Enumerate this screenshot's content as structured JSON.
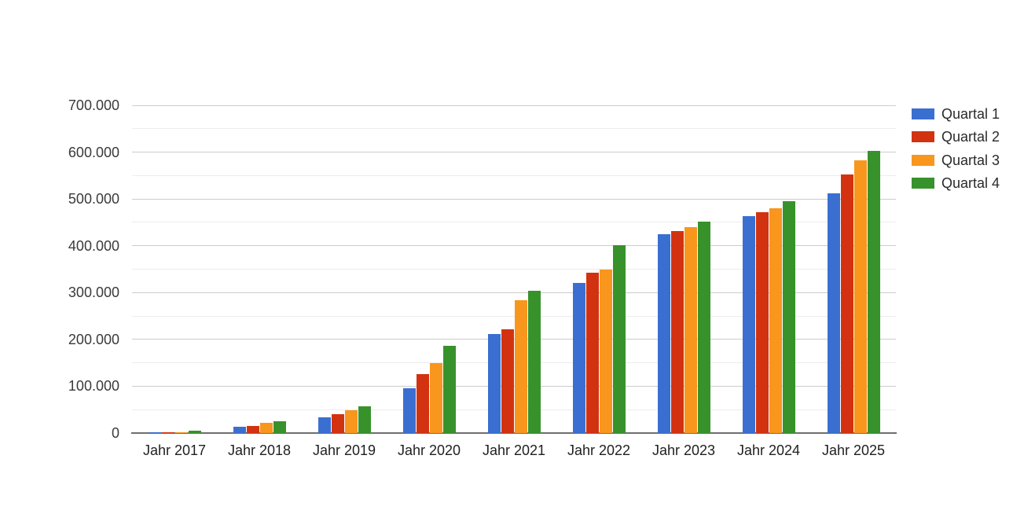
{
  "chart_data": {
    "type": "bar",
    "title": "",
    "xlabel": "",
    "ylabel": "",
    "categories": [
      "Jahr 2017",
      "Jahr 2018",
      "Jahr 2019",
      "Jahr 2020",
      "Jahr 2021",
      "Jahr 2022",
      "Jahr 2023",
      "Jahr 2024",
      "Jahr 2025"
    ],
    "series": [
      {
        "name": "Quartal 1",
        "color": "#3A6FD1",
        "values": [
          1300,
          13000,
          34000,
          96000,
          212000,
          320000,
          424000,
          463000,
          512000
        ]
      },
      {
        "name": "Quartal 2",
        "color": "#D33211",
        "values": [
          1800,
          16000,
          40000,
          126000,
          222000,
          342000,
          432000,
          471000,
          552000
        ]
      },
      {
        "name": "Quartal 3",
        "color": "#F8961D",
        "values": [
          2600,
          22000,
          49000,
          150000,
          283000,
          349000,
          440000,
          480000,
          583000
        ]
      },
      {
        "name": "Quartal 4",
        "color": "#38922B",
        "values": [
          4500,
          26000,
          57000,
          186000,
          304000,
          402000,
          451000,
          496000,
          602000
        ]
      }
    ],
    "y_axis": {
      "min": 0,
      "max": 700000,
      "major_step": 100000,
      "minor_step": 50000,
      "tick_labels": [
        "0",
        "100.000",
        "200.000",
        "300.000",
        "400.000",
        "500.000",
        "600.000",
        "700.000"
      ]
    },
    "legend": {
      "position": "right",
      "entries": [
        "Quartal 1",
        "Quartal 2",
        "Quartal 3",
        "Quartal 4"
      ]
    },
    "grid": true,
    "colors": {
      "gridline_major": "#cccccc",
      "gridline_minor": "#ececec",
      "baseline": "#6f6f6f",
      "background": "#ffffff"
    }
  }
}
